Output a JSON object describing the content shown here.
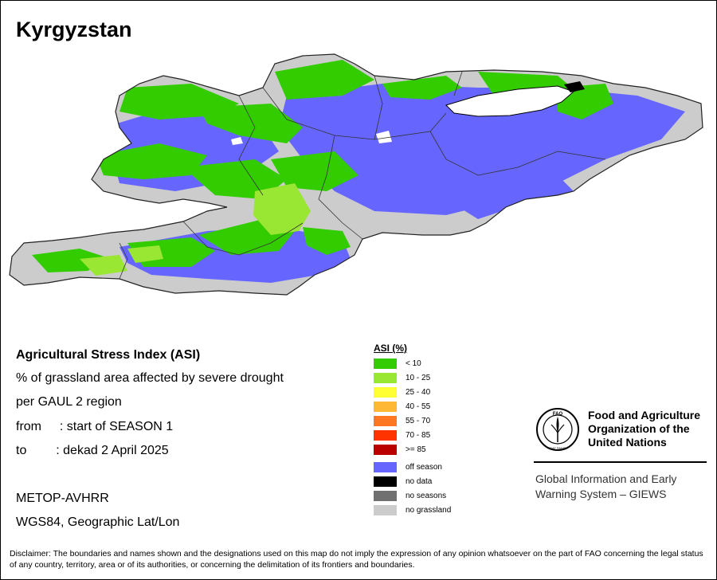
{
  "title": "Kyrgyzstan",
  "info": {
    "line1": "Agricultural Stress Index (ASI)",
    "line2": "% of grassland area affected by severe drought",
    "line3": "per GAUL 2 region",
    "from_label": "from",
    "from_value": ": start of SEASON 1",
    "to_label": "to",
    "to_value": ": dekad 2 April 2025",
    "sensor": "METOP-AVHRR",
    "projection": "WGS84, Geographic Lat/Lon"
  },
  "legend": {
    "title": "ASI (%)",
    "classes": [
      {
        "label": "< 10",
        "color": "#33cc00"
      },
      {
        "label": "10 - 25",
        "color": "#99e633"
      },
      {
        "label": "25 - 40",
        "color": "#ffff33"
      },
      {
        "label": "40 - 55",
        "color": "#ffb833"
      },
      {
        "label": "55 - 70",
        "color": "#ff7722"
      },
      {
        "label": "70 - 85",
        "color": "#ff3300"
      },
      {
        "label": ">= 85",
        "color": "#bb0000"
      }
    ],
    "other": [
      {
        "label": "off season",
        "color": "#6666ff"
      },
      {
        "label": "no data",
        "color": "#000000"
      },
      {
        "label": "no seasons",
        "color": "#707070"
      },
      {
        "label": "no grassland",
        "color": "#cccccc"
      }
    ]
  },
  "fao": {
    "logo_text": "FAO",
    "logo_motto": "FIAT PANIS",
    "name_line1": "Food and Agriculture",
    "name_line2": "Organization of the",
    "name_line3": "United Nations",
    "giews_line1": "Global Information and Early",
    "giews_line2": "Warning System – GIEWS"
  },
  "disclaimer": "Disclaimer: The boundaries and names shown and the designations used on this map do not imply the expression of any opinion whatsoever on the part of FAO concerning the legal status of any country, territory, area or of its authorities, or concerning the delimitation of its frontiers and boundaries."
}
